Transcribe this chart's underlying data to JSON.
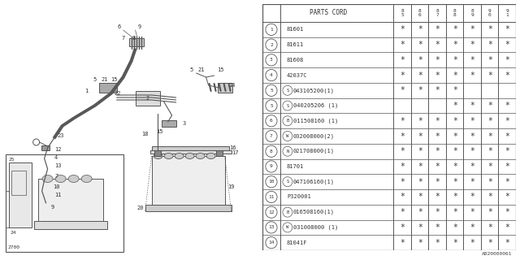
{
  "diagram_code": "A820000061",
  "rows": [
    {
      "num": "1",
      "prefix": "",
      "code": "81601",
      "stars": [
        1,
        1,
        1,
        1,
        1,
        1,
        1
      ]
    },
    {
      "num": "2",
      "prefix": "",
      "code": "81611",
      "stars": [
        1,
        1,
        1,
        1,
        1,
        1,
        1
      ]
    },
    {
      "num": "3",
      "prefix": "",
      "code": "81608",
      "stars": [
        1,
        1,
        1,
        1,
        1,
        1,
        1
      ]
    },
    {
      "num": "4",
      "prefix": "",
      "code": "42037C",
      "stars": [
        1,
        1,
        1,
        1,
        1,
        1,
        1
      ]
    },
    {
      "num": "5",
      "prefix": "S",
      "code": "043105200(1)",
      "stars": [
        1,
        1,
        1,
        1,
        0,
        0,
        0
      ]
    },
    {
      "num": "5",
      "prefix": "S",
      "code": "040205206 (1)",
      "stars": [
        0,
        0,
        0,
        1,
        1,
        1,
        1
      ]
    },
    {
      "num": "6",
      "prefix": "B",
      "code": "011508160 (1)",
      "stars": [
        1,
        1,
        1,
        1,
        1,
        1,
        1
      ]
    },
    {
      "num": "7",
      "prefix": "W",
      "code": "032008000(2)",
      "stars": [
        1,
        1,
        1,
        1,
        1,
        1,
        1
      ]
    },
    {
      "num": "8",
      "prefix": "N",
      "code": "021708000(1)",
      "stars": [
        1,
        1,
        1,
        1,
        1,
        1,
        1
      ]
    },
    {
      "num": "9",
      "prefix": "",
      "code": "81701",
      "stars": [
        1,
        1,
        1,
        1,
        1,
        1,
        1
      ]
    },
    {
      "num": "10",
      "prefix": "S",
      "code": "047106160(1)",
      "stars": [
        1,
        1,
        1,
        1,
        1,
        1,
        1
      ]
    },
    {
      "num": "11",
      "prefix": "",
      "code": "P320001",
      "stars": [
        1,
        1,
        1,
        1,
        1,
        1,
        1
      ]
    },
    {
      "num": "12",
      "prefix": "B",
      "code": "016508160(1)",
      "stars": [
        1,
        1,
        1,
        1,
        1,
        1,
        1
      ]
    },
    {
      "num": "13",
      "prefix": "W",
      "code": "031008000 (1)",
      "stars": [
        1,
        1,
        1,
        1,
        1,
        1,
        1
      ]
    },
    {
      "num": "14",
      "prefix": "",
      "code": "81041F",
      "stars": [
        1,
        1,
        1,
        1,
        1,
        1,
        1
      ]
    }
  ],
  "bg_color": "#ffffff",
  "lc": "#555555",
  "text_color": "#333333"
}
